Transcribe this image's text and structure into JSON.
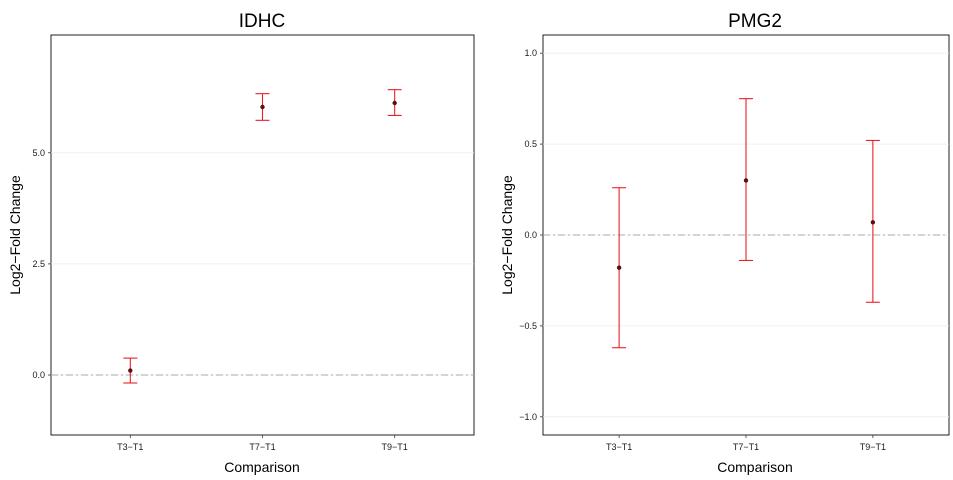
{
  "chart_data": [
    {
      "type": "scatter",
      "title": "IDHC",
      "xlabel": "Comparison",
      "ylabel": "Log2−Fold Change",
      "categories": [
        "T3−T1",
        "T7−T1",
        "T9−T1"
      ],
      "values": [
        0.1,
        6.03,
        6.12
      ],
      "lower": [
        -0.18,
        5.73,
        5.84
      ],
      "upper": [
        0.38,
        6.33,
        6.42
      ],
      "yticks": [
        0.0,
        2.5,
        5.0
      ],
      "ytick_labels": [
        "0.0",
        "2.5",
        "5.0"
      ],
      "ylim": [
        -1.35,
        7.65
      ],
      "reference_line": 0,
      "grid": true,
      "point_color": "#5c0f16",
      "errorbar_color": "#e8202a",
      "reference_color": "#aaaaaa"
    },
    {
      "type": "scatter",
      "title": "PMG2",
      "xlabel": "Comparison",
      "ylabel": "Log2−Fold Change",
      "categories": [
        "T3−T1",
        "T7−T1",
        "T9−T1"
      ],
      "values": [
        -0.18,
        0.3,
        0.07
      ],
      "lower": [
        -0.62,
        -0.14,
        -0.37
      ],
      "upper": [
        0.26,
        0.75,
        0.52
      ],
      "yticks": [
        -1.0,
        -0.5,
        0.0,
        0.5,
        1.0
      ],
      "ytick_labels": [
        "−1.0",
        "−0.5",
        "0.0",
        "0.5",
        "1.0"
      ],
      "ylim": [
        -1.1,
        1.1
      ],
      "reference_line": 0,
      "grid": true,
      "point_color": "#5c0f16",
      "errorbar_color": "#e8202a",
      "reference_color": "#aaaaaa"
    }
  ]
}
